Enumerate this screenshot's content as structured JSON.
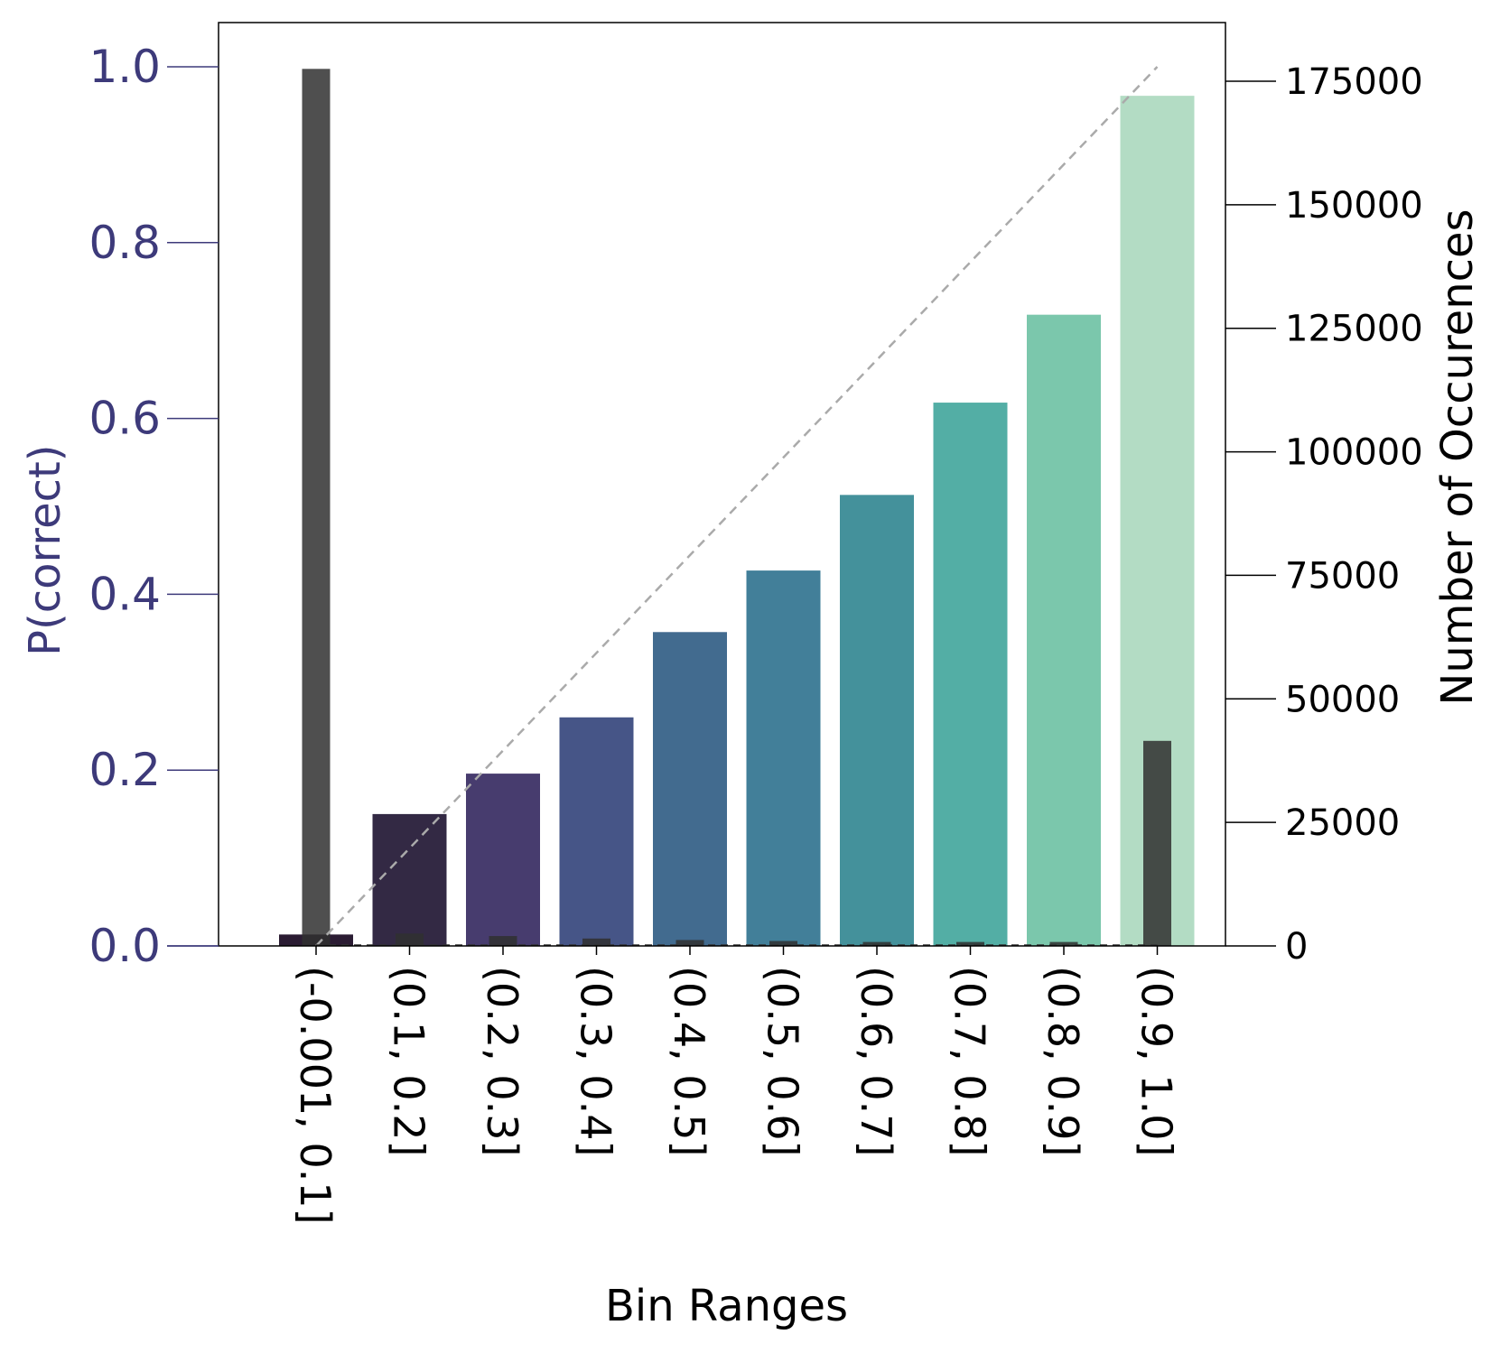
{
  "chart_data": {
    "type": "bar",
    "xlabel": "Bin Ranges",
    "ylabel_left": "P(correct)",
    "ylabel_right": "Number of Occurences",
    "categories": [
      "(-0.001, 0.1]",
      "(0.1, 0.2]",
      "(0.2, 0.3]",
      "(0.3, 0.4]",
      "(0.4, 0.5]",
      "(0.5, 0.6]",
      "(0.6, 0.7]",
      "(0.7, 0.8]",
      "(0.8, 0.9]",
      "(0.9, 1.0]"
    ],
    "ylim_left": [
      0,
      1.05
    ],
    "ylim_right": [
      0,
      185000
    ],
    "yticks_left": [
      "0.0",
      "0.2",
      "0.4",
      "0.6",
      "0.8",
      "1.0"
    ],
    "yticks_right": [
      "0",
      "25000",
      "50000",
      "75000",
      "100000",
      "125000",
      "150000",
      "175000"
    ],
    "series": [
      {
        "axis": "left",
        "values": [
          0.013,
          0.15,
          0.196,
          0.26,
          0.357,
          0.427,
          0.513,
          0.618,
          0.718,
          0.967
        ],
        "colors": [
          "#2b1c33",
          "#332944",
          "#473c6e",
          "#465587",
          "#426b8f",
          "#427f99",
          "#44919b",
          "#53aea5",
          "#7bc7ac",
          "#b3dcc4"
        ]
      },
      {
        "axis": "right",
        "values": [
          177500,
          2500,
          2000,
          1500,
          1200,
          1000,
          800,
          800,
          800,
          41500
        ],
        "color": "#303030"
      }
    ],
    "reference_line": {
      "from": [
        0.0,
        0.0
      ],
      "to": [
        1.0,
        1.0
      ],
      "style": "dashed",
      "color": "#aaaaaa"
    },
    "colors": {
      "left_axis": "#3d3a7a",
      "right_axis": "#000000"
    },
    "grid": false,
    "legend": "none"
  }
}
